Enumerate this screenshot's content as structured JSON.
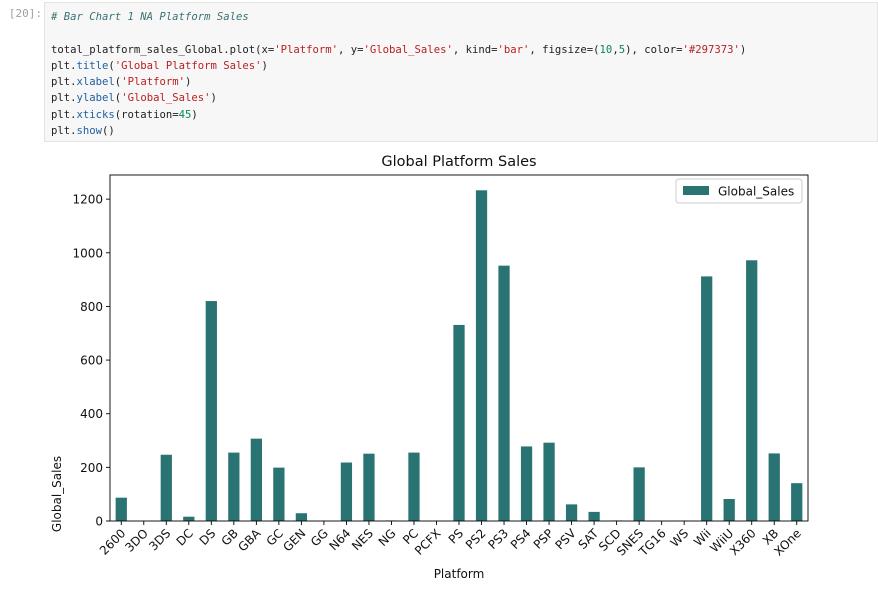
{
  "cell": {
    "prompt": "[20]:",
    "code_comment": "# Bar Chart 1 NA Platform Sales",
    "code": {
      "l1_a": "total_platform_sales_Global.plot(x=",
      "l1_s1": "'Platform'",
      "l1_b": ", y=",
      "l1_s2": "'Global_Sales'",
      "l1_c": ", kind=",
      "l1_s3": "'bar'",
      "l1_d": ", figsize=(",
      "l1_n1": "10",
      "l1_e": ",",
      "l1_n2": "5",
      "l1_f": "), color=",
      "l1_s4": "'#297373'",
      "l1_g": ")",
      "l2_a": "plt.",
      "l2_fn": "title",
      "l2_b": "(",
      "l2_s": "'Global Platform Sales'",
      "l2_c": ")",
      "l3_a": "plt.",
      "l3_fn": "xlabel",
      "l3_b": "(",
      "l3_s": "'Platform'",
      "l3_c": ")",
      "l4_a": "plt.",
      "l4_fn": "ylabel",
      "l4_b": "(",
      "l4_s": "'Global_Sales'",
      "l4_c": ")",
      "l5_a": "plt.",
      "l5_fn": "xticks",
      "l5_b": "(rotation=",
      "l5_n": "45",
      "l5_c": ")",
      "l6_a": "plt.",
      "l6_fn": "show",
      "l6_b": "()"
    }
  },
  "chart_data": {
    "type": "bar",
    "title": "Global Platform Sales",
    "xlabel": "Platform",
    "ylabel": "Global_Sales",
    "ylim": [
      0,
      1290
    ],
    "yticks": [
      0,
      200,
      400,
      600,
      800,
      1000,
      1200
    ],
    "grid": false,
    "legend": "top-right",
    "color": "#297373",
    "categories": [
      "2600",
      "3DO",
      "3DS",
      "DC",
      "DS",
      "GB",
      "GBA",
      "GC",
      "GEN",
      "GG",
      "N64",
      "NES",
      "NG",
      "PC",
      "PCFX",
      "PS",
      "PS2",
      "PS3",
      "PS4",
      "PSP",
      "PSV",
      "SAT",
      "SCD",
      "SNES",
      "TG16",
      "WS",
      "Wii",
      "WiiU",
      "X360",
      "XB",
      "XOne"
    ],
    "series": [
      {
        "name": "Global_Sales",
        "values": [
          87,
          0.1,
          247,
          16,
          820,
          255,
          307,
          199,
          29,
          0.04,
          218,
          251,
          2,
          255,
          0.03,
          731,
          1233,
          952,
          278,
          292,
          62,
          34,
          2,
          200,
          0.2,
          1.4,
          912,
          82,
          972,
          252,
          141
        ]
      }
    ]
  }
}
